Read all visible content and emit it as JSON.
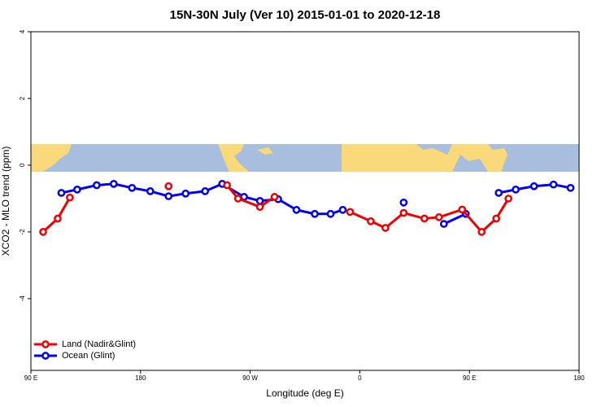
{
  "chart_data": {
    "type": "line",
    "title": "15N-30N July (Ver 10)   2015-01-01 to 2020-12-18",
    "x_label": "Longitude (deg E)",
    "y_label": "XCO2 - MLO trend (ppm)",
    "xlim": [
      90,
      540
    ],
    "ylim": [
      -6.15,
      4
    ],
    "xticks": [
      {
        "value": 90,
        "label": "90 E"
      },
      180,
      {
        "value": 270,
        "label": "90 W"
      },
      {
        "value": 360,
        "label": "0"
      },
      {
        "value": 450,
        "label": "90 E"
      },
      {
        "value": 540,
        "label": "180"
      }
    ],
    "yticks": [
      -4,
      -2,
      0,
      2,
      4
    ],
    "legend": "bottom-left",
    "series": [
      {
        "name": "Land (Nadir&Glint)",
        "color": "#ee0000",
        "x": [
          100,
          112,
          122,
          null,
          203,
          null,
          251,
          260,
          278,
          290,
          null,
          352,
          369,
          381,
          396,
          413,
          425,
          444,
          460,
          472,
          482
        ],
        "values": [
          -2.0,
          -1.6,
          -0.97,
          null,
          -0.63,
          null,
          -0.6,
          -1.0,
          -1.25,
          -0.95,
          null,
          -1.4,
          -1.68,
          -1.88,
          -1.43,
          -1.6,
          -1.56,
          -1.33,
          -2.0,
          -1.6,
          -1.0
        ]
      },
      {
        "name": "Ocean (Glint)",
        "color": "#0000ee",
        "x": [
          115,
          128,
          144,
          158,
          173,
          188,
          203,
          217,
          233,
          247,
          265,
          278,
          293,
          308,
          323,
          336,
          346,
          null,
          396,
          null,
          429,
          447,
          null,
          474,
          488,
          503,
          519,
          533
        ],
        "values": [
          -0.83,
          -0.73,
          -0.6,
          -0.56,
          -0.68,
          -0.78,
          -0.93,
          -0.85,
          -0.78,
          -0.56,
          -0.95,
          -1.07,
          -1.02,
          -1.34,
          -1.46,
          -1.46,
          -1.34,
          null,
          -1.12,
          null,
          -1.76,
          -1.46,
          null,
          -0.83,
          -0.73,
          -0.63,
          -0.58,
          -0.68
        ]
      }
    ]
  }
}
